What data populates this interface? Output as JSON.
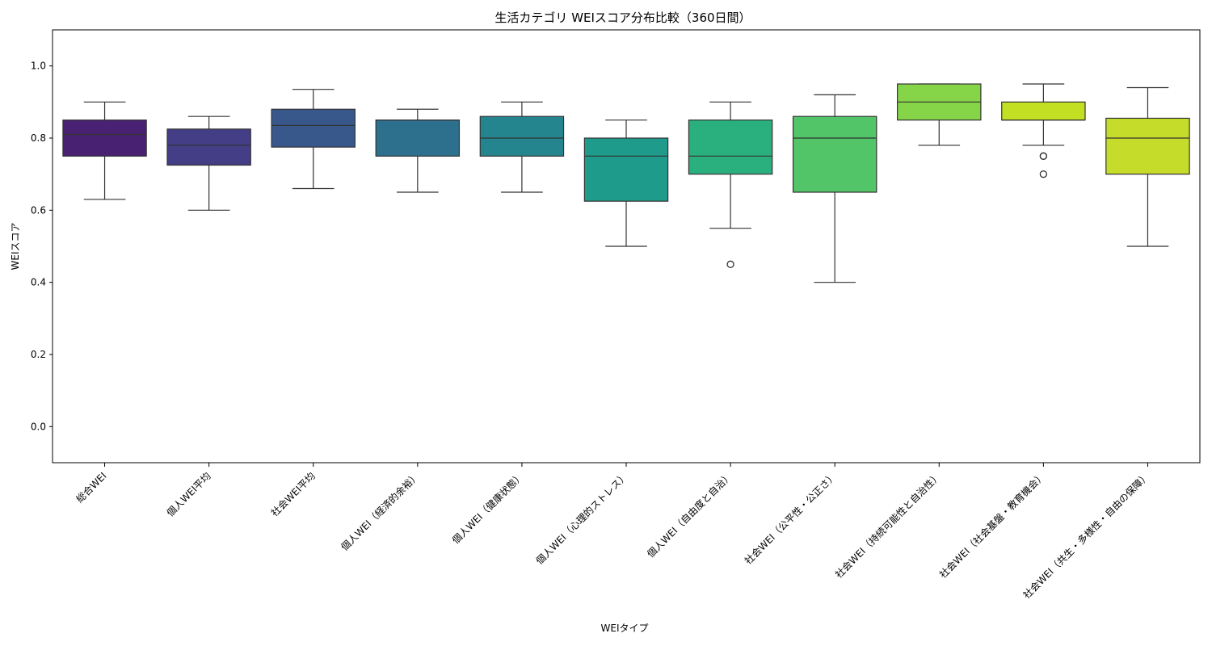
{
  "chart_data": {
    "type": "box",
    "title": "生活カテゴリ WEIスコア分布比較（360日間）",
    "xlabel": "WEIタイプ",
    "ylabel": "WEIスコア",
    "ylim": [
      -0.1,
      1.1
    ],
    "yticks": [
      0.0,
      0.2,
      0.4,
      0.6,
      0.8,
      1.0
    ],
    "ytick_labels": [
      "0.0",
      "0.2",
      "0.4",
      "0.6",
      "0.8",
      "1.0"
    ],
    "grid": false,
    "legend": "none",
    "series": [
      {
        "category": "総合WEI",
        "whisker_low": 0.63,
        "q1": 0.75,
        "median": 0.81,
        "q3": 0.85,
        "whisker_high": 0.9,
        "outliers": [],
        "color": "#482173"
      },
      {
        "category": "個人WEI平均",
        "whisker_low": 0.6,
        "q1": 0.725,
        "median": 0.78,
        "q3": 0.825,
        "whisker_high": 0.86,
        "outliers": [],
        "color": "#433e85"
      },
      {
        "category": "社会WEI平均",
        "whisker_low": 0.66,
        "q1": 0.775,
        "median": 0.835,
        "q3": 0.88,
        "whisker_high": 0.935,
        "outliers": [],
        "color": "#38588c"
      },
      {
        "category": "個人WEI（経済的余裕）",
        "whisker_low": 0.65,
        "q1": 0.75,
        "median": 0.85,
        "q3": 0.85,
        "whisker_high": 0.88,
        "outliers": [],
        "color": "#2d708e"
      },
      {
        "category": "個人WEI（健康状態）",
        "whisker_low": 0.65,
        "q1": 0.75,
        "median": 0.8,
        "q3": 0.86,
        "whisker_high": 0.9,
        "outliers": [],
        "color": "#25858e"
      },
      {
        "category": "個人WEI（心理的ストレス）",
        "whisker_low": 0.5,
        "q1": 0.625,
        "median": 0.75,
        "q3": 0.8,
        "whisker_high": 0.85,
        "outliers": [],
        "color": "#1e9b8a"
      },
      {
        "category": "個人WEI（自由度と自治）",
        "whisker_low": 0.55,
        "q1": 0.7,
        "median": 0.75,
        "q3": 0.85,
        "whisker_high": 0.9,
        "outliers": [
          0.45
        ],
        "color": "#2ab07f"
      },
      {
        "category": "社会WEI（公平性・公正さ）",
        "whisker_low": 0.4,
        "q1": 0.65,
        "median": 0.8,
        "q3": 0.86,
        "whisker_high": 0.92,
        "outliers": [],
        "color": "#52c569"
      },
      {
        "category": "社会WEI（持続可能性と自治性）",
        "whisker_low": 0.78,
        "q1": 0.85,
        "median": 0.9,
        "q3": 0.95,
        "whisker_high": 0.95,
        "outliers": [],
        "color": "#86d549"
      },
      {
        "category": "社会WEI（社会基盤・教育機会）",
        "whisker_low": 0.78,
        "q1": 0.85,
        "median": 0.85,
        "q3": 0.9,
        "whisker_high": 0.95,
        "outliers": [
          0.75,
          0.75,
          0.7
        ],
        "color": "#c2df23"
      },
      {
        "category": "社会WEI（共生・多様性・自由の保障）",
        "whisker_low": 0.5,
        "q1": 0.7,
        "median": 0.8,
        "q3": 0.855,
        "whisker_high": 0.94,
        "outliers": [],
        "color": "#c6dc2a"
      }
    ]
  }
}
